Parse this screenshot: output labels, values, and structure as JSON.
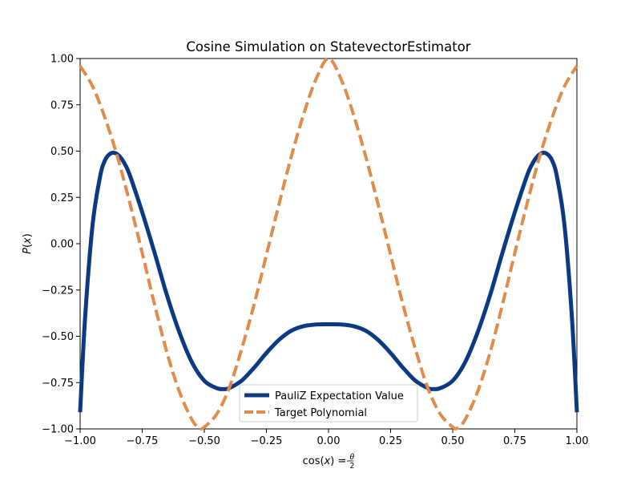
{
  "chart_data": {
    "type": "line",
    "title": "Cosine Simulation on StatevectorEstimator",
    "xlabel": "cos(x) = θ/2",
    "ylabel": "P(x)",
    "xlim": [
      -1.0,
      1.0
    ],
    "ylim": [
      -1.0,
      1.0
    ],
    "xticks": [
      "−1.00",
      "−0.75",
      "−0.50",
      "−0.25",
      "0.00",
      "0.25",
      "0.50",
      "0.75",
      "1.00"
    ],
    "yticks": [
      "−1.00",
      "−0.75",
      "−0.50",
      "−0.25",
      "0.00",
      "0.25",
      "0.50",
      "0.75",
      "1.00"
    ],
    "grid": false,
    "legend_position": "lower-center",
    "series": [
      {
        "name": "PauliZ Expectation Value",
        "color": "#0b3a82",
        "style": "solid",
        "x": [
          -1.0,
          -0.98,
          -0.95,
          -0.92,
          -0.9,
          -0.88,
          -0.86,
          -0.84,
          -0.82,
          -0.8,
          -0.75,
          -0.7,
          -0.65,
          -0.6,
          -0.55,
          -0.5,
          -0.45,
          -0.42,
          -0.4,
          -0.35,
          -0.3,
          -0.25,
          -0.2,
          -0.15,
          -0.1,
          -0.05,
          0.0,
          0.05,
          0.1,
          0.15,
          0.2,
          0.25,
          0.3,
          0.35,
          0.4,
          0.42,
          0.45,
          0.5,
          0.55,
          0.6,
          0.65,
          0.7,
          0.75,
          0.8,
          0.82,
          0.84,
          0.86,
          0.88,
          0.9,
          0.92,
          0.95,
          0.98,
          1.0
        ],
        "y": [
          -0.91,
          -0.4,
          0.1,
          0.36,
          0.45,
          0.485,
          0.49,
          0.47,
          0.43,
          0.37,
          0.17,
          -0.05,
          -0.28,
          -0.48,
          -0.64,
          -0.74,
          -0.78,
          -0.785,
          -0.78,
          -0.74,
          -0.67,
          -0.59,
          -0.52,
          -0.47,
          -0.445,
          -0.436,
          -0.435,
          -0.436,
          -0.445,
          -0.47,
          -0.52,
          -0.59,
          -0.67,
          -0.74,
          -0.78,
          -0.785,
          -0.78,
          -0.74,
          -0.64,
          -0.48,
          -0.28,
          -0.05,
          0.17,
          0.37,
          0.43,
          0.47,
          0.49,
          0.485,
          0.45,
          0.36,
          0.1,
          -0.4,
          -0.91
        ]
      },
      {
        "name": "Target Polynomial",
        "color": "#e08c4c",
        "style": "dashed",
        "x": [
          -1.0,
          -0.95,
          -0.9,
          -0.85,
          -0.8,
          -0.75,
          -0.7,
          -0.65,
          -0.6,
          -0.55,
          -0.52,
          -0.5,
          -0.45,
          -0.4,
          -0.35,
          -0.3,
          -0.25,
          -0.2,
          -0.15,
          -0.1,
          -0.05,
          0.0,
          0.05,
          0.1,
          0.15,
          0.2,
          0.25,
          0.3,
          0.35,
          0.4,
          0.45,
          0.5,
          0.52,
          0.55,
          0.6,
          0.65,
          0.7,
          0.75,
          0.8,
          0.85,
          0.9,
          0.95,
          1.0
        ],
        "y": [
          0.96,
          0.85,
          0.68,
          0.47,
          0.22,
          -0.05,
          -0.33,
          -0.59,
          -0.8,
          -0.95,
          -0.995,
          -0.99,
          -0.92,
          -0.78,
          -0.57,
          -0.33,
          -0.06,
          0.21,
          0.47,
          0.7,
          0.89,
          1.0,
          0.89,
          0.7,
          0.47,
          0.21,
          -0.06,
          -0.33,
          -0.57,
          -0.78,
          -0.92,
          -0.99,
          -0.995,
          -0.95,
          -0.8,
          -0.59,
          -0.33,
          -0.05,
          0.22,
          0.47,
          0.68,
          0.85,
          0.96
        ]
      }
    ]
  }
}
